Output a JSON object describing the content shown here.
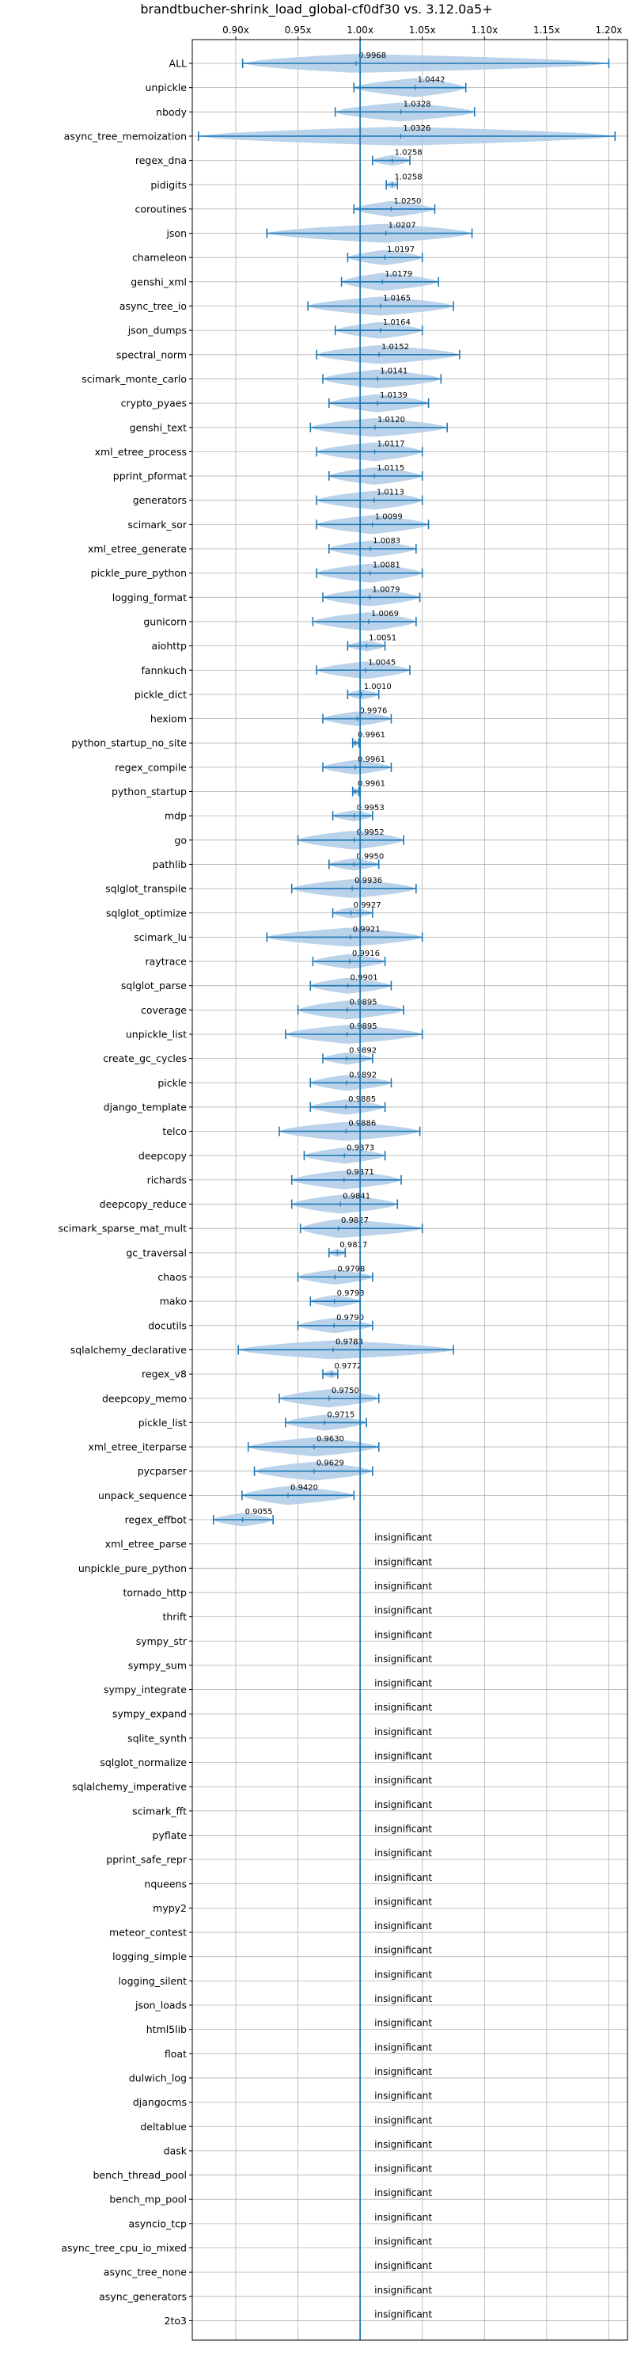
{
  "chart_data": {
    "type": "violin",
    "title": "brandtbucher-shrink_load_global-cf0df30 vs. 3.12.0a5+",
    "xlim": [
      0.865,
      1.215
    ],
    "x_ticks": [
      0.9,
      0.95,
      1.0,
      1.05,
      1.1,
      1.15,
      1.2
    ],
    "x_tick_labels": [
      "0.90x",
      "0.95x",
      "1.00x",
      "1.05x",
      "1.10x",
      "1.15x",
      "1.20x"
    ],
    "reference_line": 1.0,
    "grid": true,
    "significant": [
      {
        "name": "ALL",
        "value": 0.9968,
        "label": "0.9968",
        "min": 0.9055,
        "max": 1.2
      },
      {
        "name": "unpickle",
        "value": 1.0442,
        "label": "1.0442",
        "min": 0.995,
        "max": 1.085
      },
      {
        "name": "nbody",
        "value": 1.0328,
        "label": "1.0328",
        "min": 0.98,
        "max": 1.092
      },
      {
        "name": "async_tree_memoization",
        "value": 1.0326,
        "label": "1.0326",
        "min": 0.87,
        "max": 1.205
      },
      {
        "name": "regex_dna",
        "value": 1.0258,
        "label": "1.0258",
        "min": 1.01,
        "max": 1.04
      },
      {
        "name": "pidigits",
        "value": 1.0258,
        "label": "1.0258",
        "min": 1.021,
        "max": 1.03
      },
      {
        "name": "coroutines",
        "value": 1.025,
        "label": "1.0250",
        "min": 0.995,
        "max": 1.06
      },
      {
        "name": "json",
        "value": 1.0207,
        "label": "1.0207",
        "min": 0.925,
        "max": 1.09
      },
      {
        "name": "chameleon",
        "value": 1.0197,
        "label": "1.0197",
        "min": 0.99,
        "max": 1.05
      },
      {
        "name": "genshi_xml",
        "value": 1.0179,
        "label": "1.0179",
        "min": 0.985,
        "max": 1.063
      },
      {
        "name": "async_tree_io",
        "value": 1.0165,
        "label": "1.0165",
        "min": 0.958,
        "max": 1.075
      },
      {
        "name": "json_dumps",
        "value": 1.0164,
        "label": "1.0164",
        "min": 0.98,
        "max": 1.05
      },
      {
        "name": "spectral_norm",
        "value": 1.0152,
        "label": "1.0152",
        "min": 0.965,
        "max": 1.08
      },
      {
        "name": "scimark_monte_carlo",
        "value": 1.0141,
        "label": "1.0141",
        "min": 0.97,
        "max": 1.065
      },
      {
        "name": "crypto_pyaes",
        "value": 1.0139,
        "label": "1.0139",
        "min": 0.975,
        "max": 1.055
      },
      {
        "name": "genshi_text",
        "value": 1.012,
        "label": "1.0120",
        "min": 0.96,
        "max": 1.07
      },
      {
        "name": "xml_etree_process",
        "value": 1.0117,
        "label": "1.0117",
        "min": 0.965,
        "max": 1.05
      },
      {
        "name": "pprint_pformat",
        "value": 1.0115,
        "label": "1.0115",
        "min": 0.975,
        "max": 1.05
      },
      {
        "name": "generators",
        "value": 1.0113,
        "label": "1.0113",
        "min": 0.965,
        "max": 1.05
      },
      {
        "name": "scimark_sor",
        "value": 1.0099,
        "label": "1.0099",
        "min": 0.965,
        "max": 1.055
      },
      {
        "name": "xml_etree_generate",
        "value": 1.0083,
        "label": "1.0083",
        "min": 0.975,
        "max": 1.045
      },
      {
        "name": "pickle_pure_python",
        "value": 1.0081,
        "label": "1.0081",
        "min": 0.965,
        "max": 1.05
      },
      {
        "name": "logging_format",
        "value": 1.0079,
        "label": "1.0079",
        "min": 0.97,
        "max": 1.048
      },
      {
        "name": "gunicorn",
        "value": 1.0069,
        "label": "1.0069",
        "min": 0.962,
        "max": 1.045
      },
      {
        "name": "aiohttp",
        "value": 1.0051,
        "label": "1.0051",
        "min": 0.99,
        "max": 1.02
      },
      {
        "name": "fannkuch",
        "value": 1.0045,
        "label": "1.0045",
        "min": 0.965,
        "max": 1.04
      },
      {
        "name": "pickle_dict",
        "value": 1.001,
        "label": "1.0010",
        "min": 0.99,
        "max": 1.015
      },
      {
        "name": "hexiom",
        "value": 0.9976,
        "label": "0.9976",
        "min": 0.97,
        "max": 1.025
      },
      {
        "name": "python_startup_no_site",
        "value": 0.9961,
        "label": "0.9961",
        "min": 0.994,
        "max": 0.999
      },
      {
        "name": "regex_compile",
        "value": 0.9961,
        "label": "0.9961",
        "min": 0.97,
        "max": 1.025
      },
      {
        "name": "python_startup",
        "value": 0.9961,
        "label": "0.9961",
        "min": 0.994,
        "max": 0.999
      },
      {
        "name": "mdp",
        "value": 0.9953,
        "label": "0.9953",
        "min": 0.978,
        "max": 1.01
      },
      {
        "name": "go",
        "value": 0.9952,
        "label": "0.9952",
        "min": 0.95,
        "max": 1.035
      },
      {
        "name": "pathlib",
        "value": 0.995,
        "label": "0.9950",
        "min": 0.975,
        "max": 1.015
      },
      {
        "name": "sqlglot_transpile",
        "value": 0.9936,
        "label": "0.9936",
        "min": 0.945,
        "max": 1.045
      },
      {
        "name": "sqlglot_optimize",
        "value": 0.9927,
        "label": "0.9927",
        "min": 0.978,
        "max": 1.01
      },
      {
        "name": "scimark_lu",
        "value": 0.9921,
        "label": "0.9921",
        "min": 0.925,
        "max": 1.05
      },
      {
        "name": "raytrace",
        "value": 0.9916,
        "label": "0.9916",
        "min": 0.962,
        "max": 1.02
      },
      {
        "name": "sqlglot_parse",
        "value": 0.9901,
        "label": "0.9901",
        "min": 0.96,
        "max": 1.025
      },
      {
        "name": "coverage",
        "value": 0.9895,
        "label": "0.9895",
        "min": 0.95,
        "max": 1.035
      },
      {
        "name": "unpickle_list",
        "value": 0.9895,
        "label": "0.9895",
        "min": 0.94,
        "max": 1.05
      },
      {
        "name": "create_gc_cycles",
        "value": 0.9892,
        "label": "0.9892",
        "min": 0.97,
        "max": 1.01
      },
      {
        "name": "pickle",
        "value": 0.9892,
        "label": "0.9892",
        "min": 0.96,
        "max": 1.025
      },
      {
        "name": "django_template",
        "value": 0.9885,
        "label": "0.9885",
        "min": 0.96,
        "max": 1.02
      },
      {
        "name": "telco",
        "value": 0.9886,
        "label": "0.9886",
        "min": 0.935,
        "max": 1.048
      },
      {
        "name": "deepcopy",
        "value": 0.9873,
        "label": "0.9873",
        "min": 0.955,
        "max": 1.02
      },
      {
        "name": "richards",
        "value": 0.9871,
        "label": "0.9871",
        "min": 0.945,
        "max": 1.033
      },
      {
        "name": "deepcopy_reduce",
        "value": 0.9841,
        "label": "0.9841",
        "min": 0.945,
        "max": 1.03
      },
      {
        "name": "scimark_sparse_mat_mult",
        "value": 0.9827,
        "label": "0.9827",
        "min": 0.952,
        "max": 1.05
      },
      {
        "name": "gc_traversal",
        "value": 0.9817,
        "label": "0.9817",
        "min": 0.975,
        "max": 0.988
      },
      {
        "name": "chaos",
        "value": 0.9798,
        "label": "0.9798",
        "min": 0.95,
        "max": 1.01
      },
      {
        "name": "mako",
        "value": 0.9793,
        "label": "0.9793",
        "min": 0.96,
        "max": 1.0
      },
      {
        "name": "docutils",
        "value": 0.979,
        "label": "0.9790",
        "min": 0.95,
        "max": 1.01
      },
      {
        "name": "sqlalchemy_declarative",
        "value": 0.9783,
        "label": "0.9783",
        "min": 0.902,
        "max": 1.075
      },
      {
        "name": "regex_v8",
        "value": 0.9772,
        "label": "0.9772",
        "min": 0.97,
        "max": 0.982
      },
      {
        "name": "deepcopy_memo",
        "value": 0.975,
        "label": "0.9750",
        "min": 0.935,
        "max": 1.015
      },
      {
        "name": "pickle_list",
        "value": 0.9715,
        "label": "0.9715",
        "min": 0.94,
        "max": 1.005
      },
      {
        "name": "xml_etree_iterparse",
        "value": 0.963,
        "label": "0.9630",
        "min": 0.91,
        "max": 1.015
      },
      {
        "name": "pycparser",
        "value": 0.9629,
        "label": "0.9629",
        "min": 0.915,
        "max": 1.01
      },
      {
        "name": "unpack_sequence",
        "value": 0.942,
        "label": "0.9420",
        "min": 0.905,
        "max": 0.995
      },
      {
        "name": "regex_effbot",
        "value": 0.9055,
        "label": "0.9055",
        "min": 0.882,
        "max": 0.93
      }
    ],
    "insignificant_label": "insignificant",
    "insignificant": [
      "xml_etree_parse",
      "unpickle_pure_python",
      "tornado_http",
      "thrift",
      "sympy_str",
      "sympy_sum",
      "sympy_integrate",
      "sympy_expand",
      "sqlite_synth",
      "sqlglot_normalize",
      "sqlalchemy_imperative",
      "scimark_fft",
      "pyflate",
      "pprint_safe_repr",
      "nqueens",
      "mypy2",
      "meteor_contest",
      "logging_simple",
      "logging_silent",
      "json_loads",
      "html5lib",
      "float",
      "dulwich_log",
      "djangocms",
      "deltablue",
      "dask",
      "bench_thread_pool",
      "bench_mp_pool",
      "asyncio_tcp",
      "async_tree_cpu_io_mixed",
      "async_tree_none",
      "async_generators",
      "2to3"
    ],
    "colors": {
      "violin": "#aecbe6",
      "line": "#1f77b4",
      "grid": "#b0b0b0",
      "text": "#000000"
    }
  }
}
